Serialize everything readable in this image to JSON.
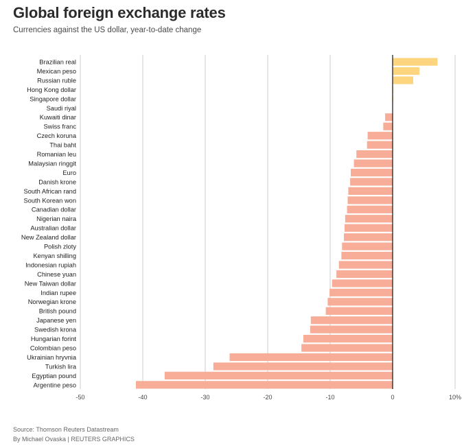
{
  "header": {
    "title": "Global foreign exchange rates",
    "subtitle": "Currencies against the US dollar, year-to-date change"
  },
  "footer": {
    "source": "Source: Thomson Reuters Datastream",
    "credit": "By Michael Ovaska | REUTERS GRAPHICS"
  },
  "colors": {
    "positive": "#fdd57e",
    "negative": "#f7ad98",
    "zero_line": "#222222",
    "grid": "#cccccc"
  },
  "chart_data": {
    "type": "bar",
    "orientation": "horizontal",
    "title": "Global foreign exchange rates",
    "subtitle": "Currencies against the US dollar, year-to-date change",
    "xlabel": "",
    "ylabel": "",
    "xlim": [
      -50,
      10
    ],
    "x_ticks": [
      -50,
      -40,
      -30,
      -20,
      -10,
      0,
      10
    ],
    "x_tick_labels": [
      "-50",
      "-40",
      "-30",
      "-20",
      "-10",
      "0",
      "10%"
    ],
    "grid": true,
    "categories": [
      "Brazilian real",
      "Mexican peso",
      "Russian ruble",
      "Hong Kong dollar",
      "Singapore dollar",
      "Saudi riyal",
      "Kuwaiti dinar",
      "Swiss franc",
      "Czech koruna",
      "Thai baht",
      "Romanian leu",
      "Malaysian ringgit",
      "Euro",
      "Danish krone",
      "South African rand",
      "South Korean won",
      "Canadian dollar",
      "Nigerian naira",
      "Australian dollar",
      "New Zealand dollar",
      "Polish zloty",
      "Kenyan shilling",
      "Indonesian rupiah",
      "Chinese yuan",
      "New Taiwan dollar",
      "Indian rupee",
      "Norwegian krone",
      "British pound",
      "Japanese yen",
      "Swedish krona",
      "Hungarian forint",
      "Colombian peso",
      "Ukrainian hryvnia",
      "Turkish lira",
      "Egyptian pound",
      "Argentine peso"
    ],
    "values": [
      7.2,
      4.3,
      3.3,
      0.1,
      0.1,
      0.0,
      -1.2,
      -1.5,
      -4.0,
      -4.1,
      -5.8,
      -6.2,
      -6.7,
      -6.8,
      -7.1,
      -7.2,
      -7.3,
      -7.6,
      -7.7,
      -7.8,
      -8.1,
      -8.2,
      -8.6,
      -9.0,
      -9.7,
      -10.1,
      -10.4,
      -10.7,
      -13.1,
      -13.2,
      -14.3,
      -14.6,
      -26.1,
      -28.7,
      -36.5,
      -41.1
    ]
  }
}
